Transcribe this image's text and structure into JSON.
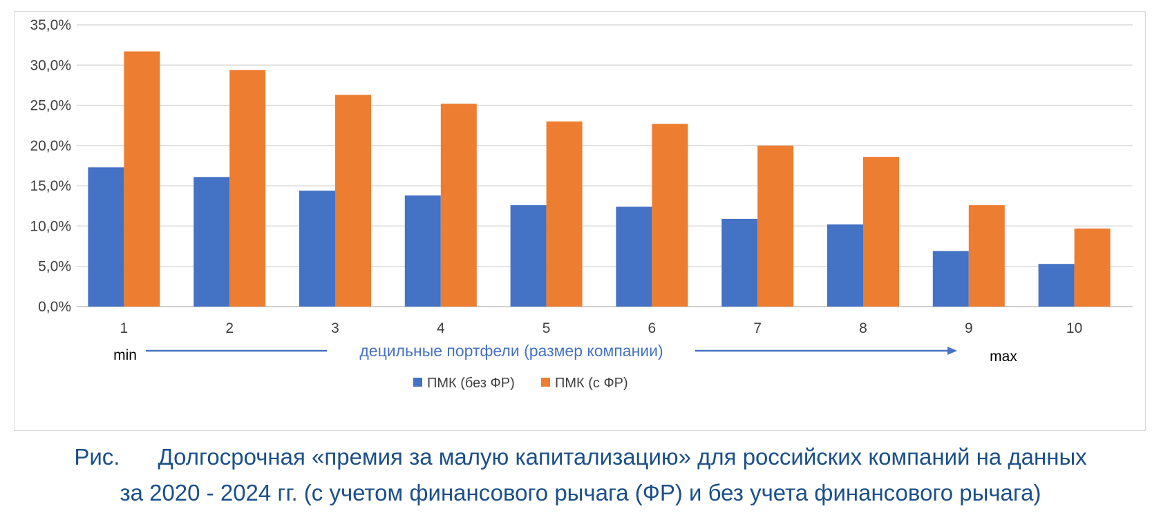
{
  "chart_data": {
    "type": "bar",
    "categories": [
      "1",
      "2",
      "3",
      "4",
      "5",
      "6",
      "7",
      "8",
      "9",
      "10"
    ],
    "series": [
      {
        "name": "ПМК (без ФР)",
        "color": "#4472c4",
        "values": [
          17.3,
          16.1,
          14.4,
          13.8,
          12.6,
          12.4,
          10.9,
          10.2,
          6.9,
          5.3
        ]
      },
      {
        "name": "ПМК (с ФР)",
        "color": "#ed7d31",
        "values": [
          31.7,
          29.4,
          26.3,
          25.2,
          23.0,
          22.7,
          20.0,
          18.6,
          12.6,
          9.7
        ]
      }
    ],
    "ylim": [
      0,
      35
    ],
    "yticks": [
      "0,0%",
      "5,0%",
      "10,0%",
      "15,0%",
      "20,0%",
      "25,0%",
      "30,0%",
      "35,0%"
    ],
    "xlabel": "децильные портфели (размер компании)",
    "xlabel_color": "#4472c4",
    "x_min_label": "min",
    "x_max_label": "max",
    "grid": true,
    "legend_position": "bottom"
  },
  "caption": {
    "line1": "Рис.      Долгосрочная «премия за малую капитализацию» для российских компаний на данных",
    "line2": "за 2020 - 2024 гг. (с учетом финансового рычага (ФР) и без учета финансового рычага)"
  }
}
